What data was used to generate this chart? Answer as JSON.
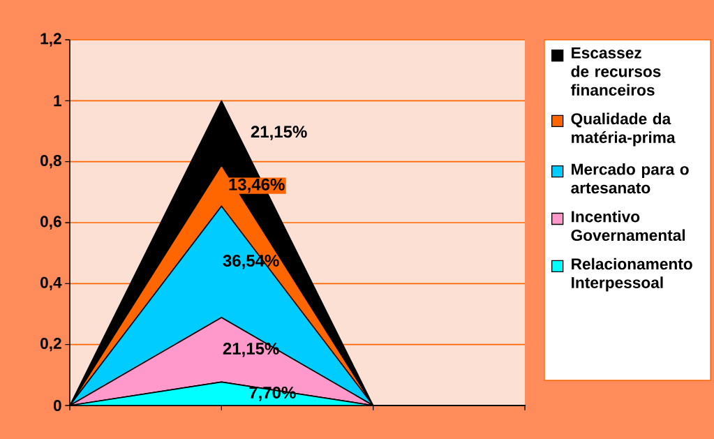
{
  "chart_data": {
    "type": "area",
    "stacked": true,
    "categories": [
      null,
      null,
      null,
      null
    ],
    "series": [
      {
        "name": "Relacionamento Interpessoal",
        "color": "#00ffff",
        "values": [
          0,
          0.077,
          0,
          0
        ],
        "value_labels": [
          null,
          "7,70%",
          null,
          null
        ]
      },
      {
        "name": "Incentivo Governamental",
        "color": "#ff99cc",
        "values": [
          0,
          0.2115,
          0,
          0
        ],
        "value_labels": [
          null,
          "21,15%",
          null,
          null
        ]
      },
      {
        "name": "Mercado para o artesanato",
        "color": "#00ccff",
        "values": [
          0,
          0.3654,
          0,
          0
        ],
        "value_labels": [
          null,
          "36,54%",
          null,
          null
        ]
      },
      {
        "name": "Qualidade da matéria-prima",
        "color": "#ff6600",
        "values": [
          0,
          0.1346,
          0,
          0
        ],
        "value_labels": [
          null,
          "13,46%",
          null,
          null
        ]
      },
      {
        "name": "Escassez de recursos financeiros",
        "color": "#000000",
        "values": [
          0,
          0.2115,
          0,
          0
        ],
        "value_labels": [
          null,
          "21,15%",
          null,
          null
        ]
      }
    ],
    "ylim": [
      0,
      1.2
    ],
    "yticks": [
      {
        "value": 0,
        "label": "0"
      },
      {
        "value": 0.2,
        "label": "0,2"
      },
      {
        "value": 0.4,
        "label": "0,4"
      },
      {
        "value": 0.6,
        "label": "0,6"
      },
      {
        "value": 0.8,
        "label": "0,8"
      },
      {
        "value": 1,
        "label": "1"
      },
      {
        "value": 1.2,
        "label": "1,2"
      }
    ],
    "grid": "y",
    "legend": "right"
  }
}
